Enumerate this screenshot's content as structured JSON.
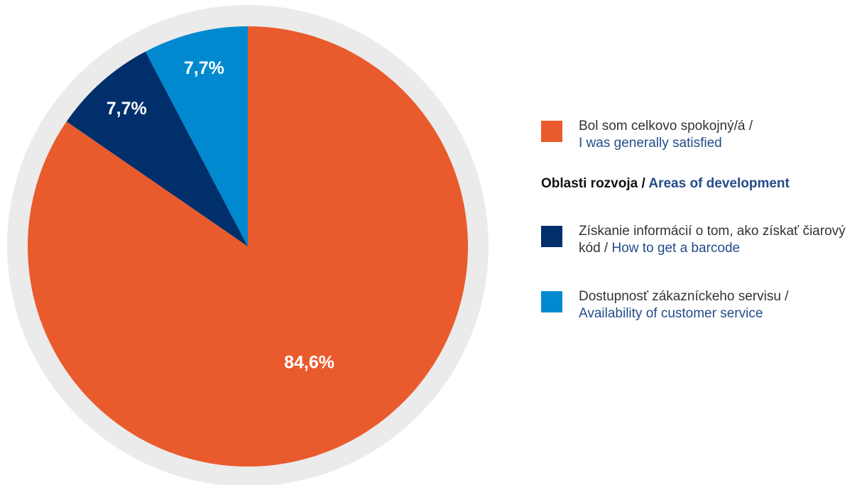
{
  "chart_data": {
    "type": "pie",
    "categories": [
      {
        "sk": "Bol som celkovo spokojný/á /",
        "en": "I was generally satisfied"
      },
      {
        "sk": "Získanie informácií o tom, ako získať čiarový kód /",
        "en": "How to get a barcode"
      },
      {
        "sk": "Dostupnosť zákazníckeho servisu  /",
        "en": "Availability of customer service"
      }
    ],
    "values": [
      84.6,
      7.7,
      7.7
    ],
    "value_labels": [
      "84,6%",
      "7,7%",
      "7,7%"
    ],
    "colors": [
      "#e95b2d",
      "#002f6c",
      "#0089cf"
    ],
    "legend_heading": {
      "sk": "Oblasti rozvoja /",
      "en": "Areas of development"
    }
  }
}
